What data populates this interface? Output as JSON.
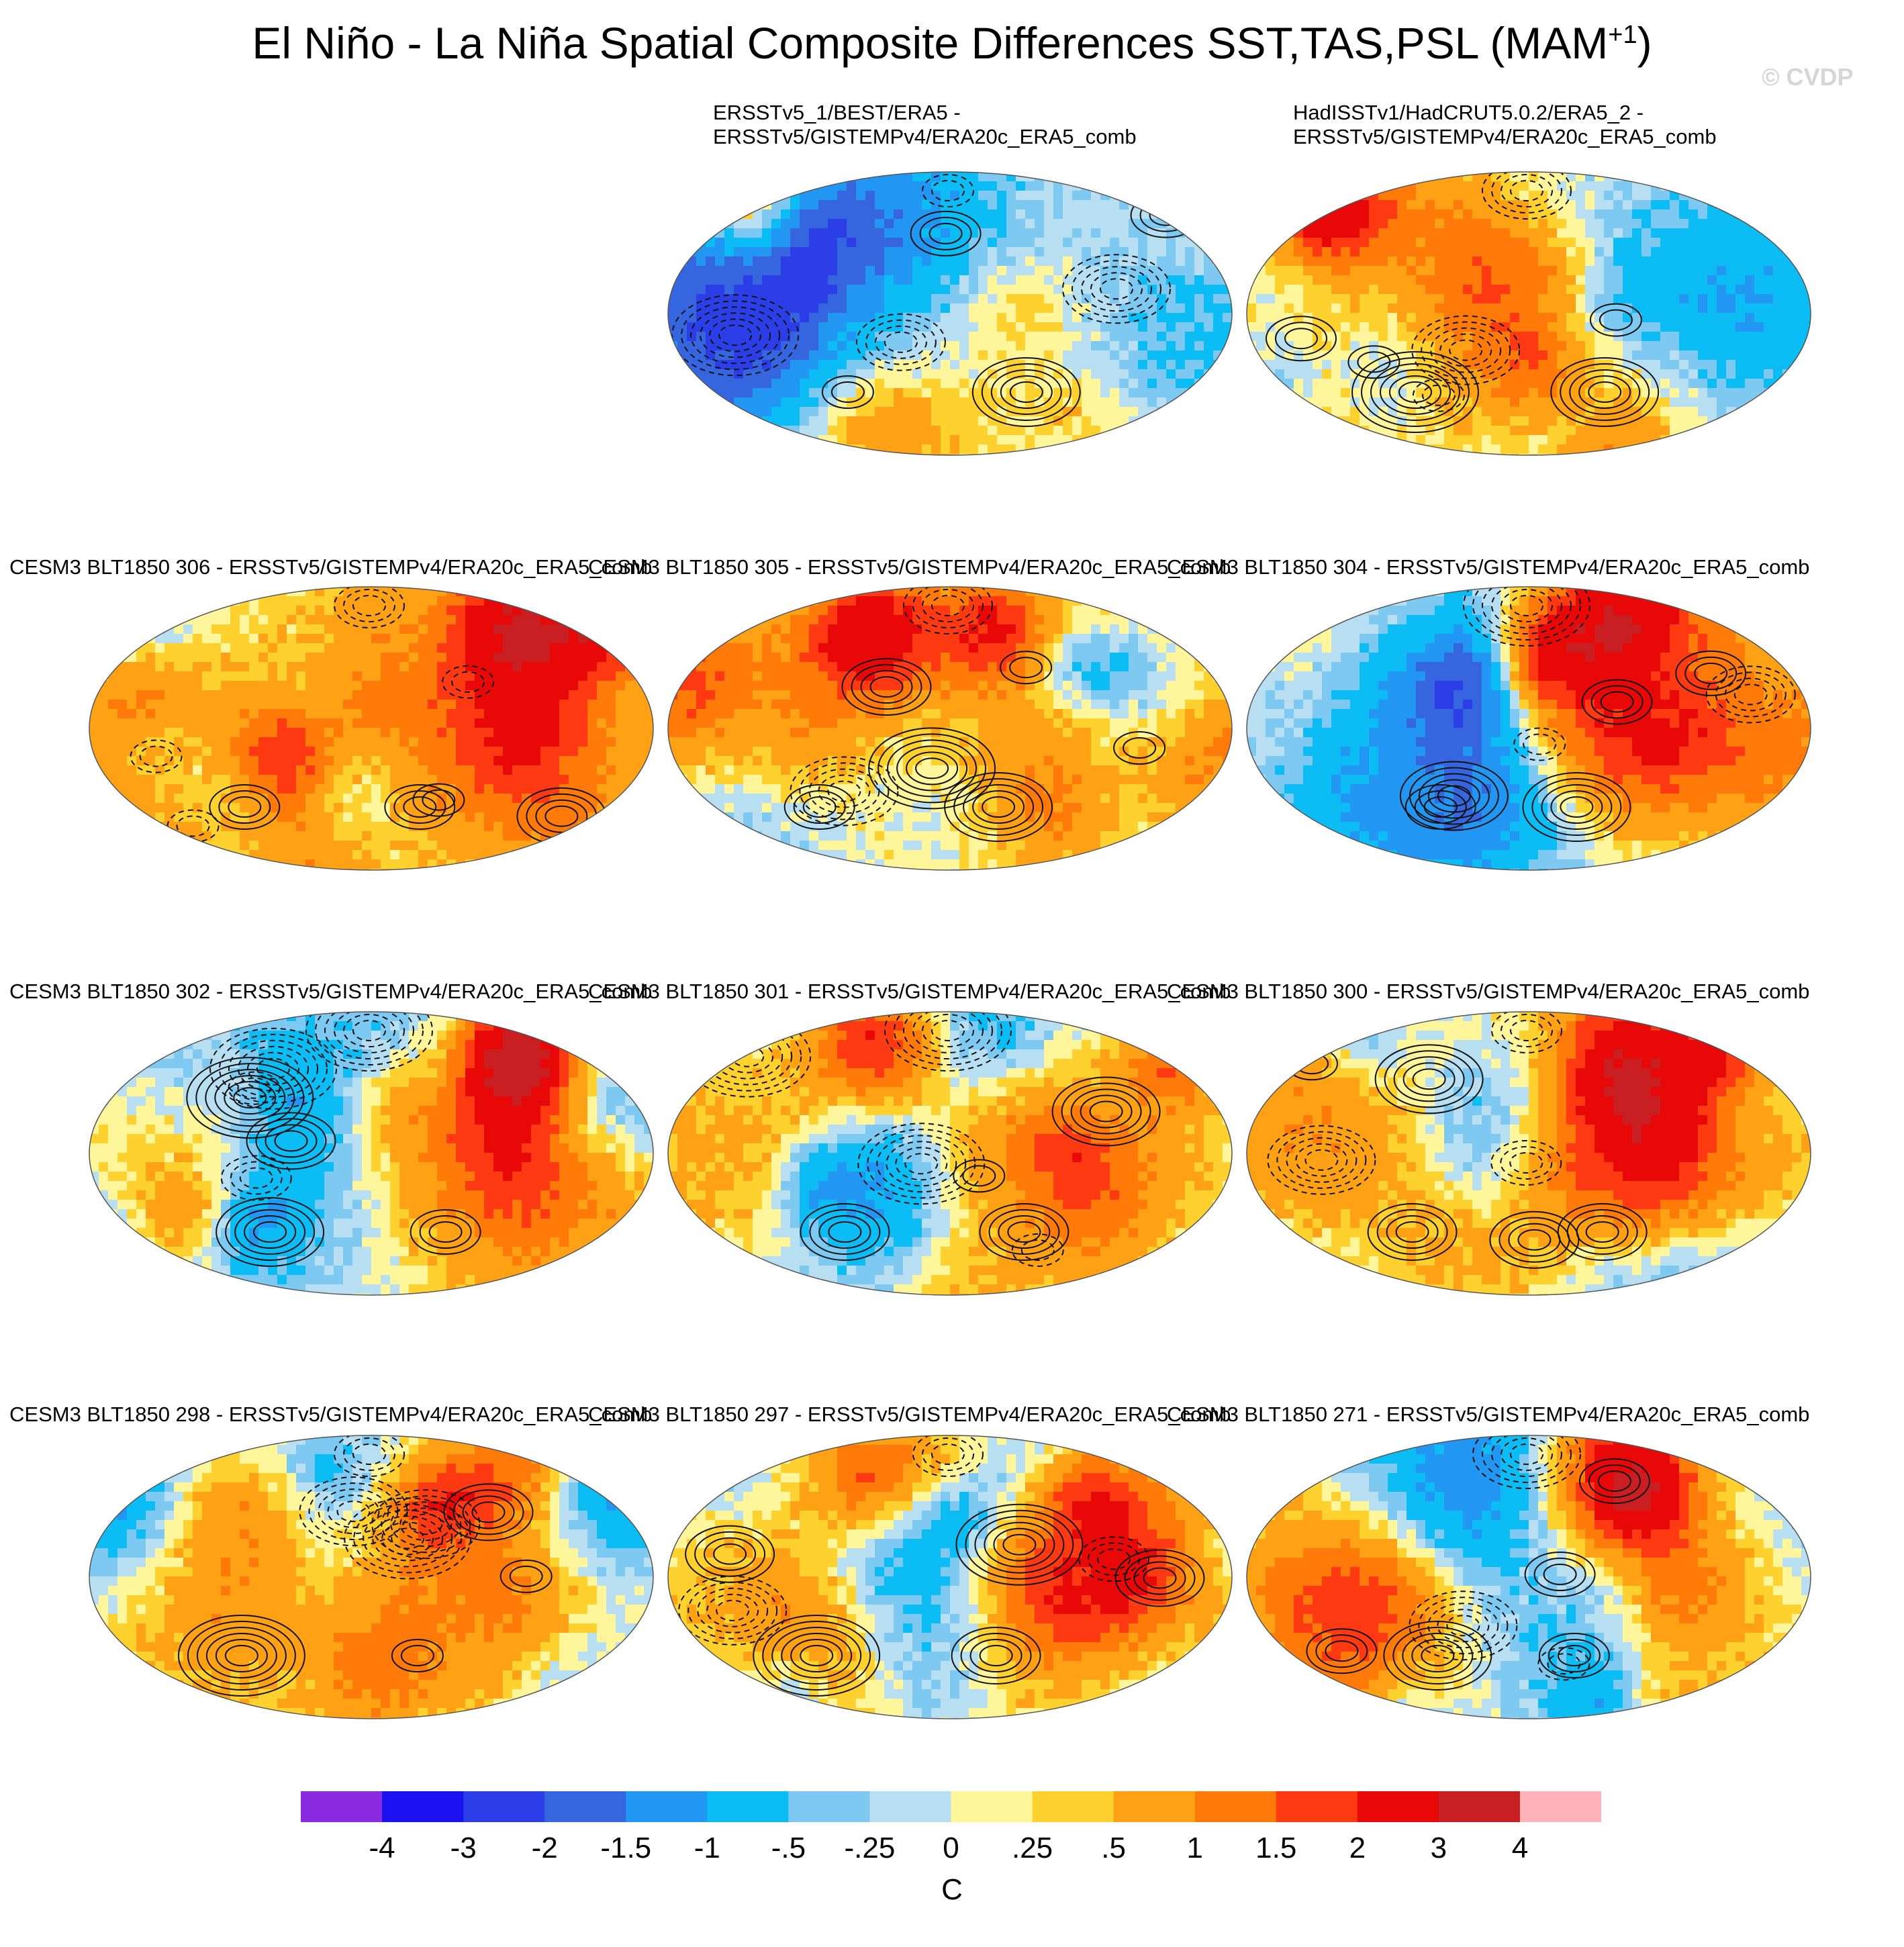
{
  "figure": {
    "title": "El Niño - La Niña Spatial Composite Differences SST,TAS,PSL (MAM",
    "title_superscript": "+1",
    "title_close": ")",
    "watermark": "© CVDP"
  },
  "chart_data": {
    "type": "heatmap",
    "description_variables": [
      "SST",
      "TAS",
      "PSL"
    ],
    "season": "MAM+1",
    "colorbar": {
      "units": "C",
      "tick_labels": [
        "-4",
        "-3",
        "-2",
        "-1.5",
        "-1",
        "-.5",
        "-.25",
        "0",
        ".25",
        ".5",
        "1",
        "1.5",
        "2",
        "3",
        "4"
      ],
      "levels": [
        -4,
        -3,
        -2,
        -1.5,
        -1,
        -0.5,
        -0.25,
        0,
        0.25,
        0.5,
        1,
        1.5,
        2,
        3,
        4
      ],
      "colors": [
        "#8a2be2",
        "#1a10f0",
        "#2b3ee8",
        "#3566e0",
        "#2196f3",
        "#0bbcf5",
        "#7dc9f2",
        "#b8def2",
        "#fff59a",
        "#ffd12f",
        "#ffa115",
        "#ff7a08",
        "#ff3a12",
        "#e80808",
        "#c91f22",
        "#ffb3b8"
      ]
    },
    "panels": [
      {
        "title": "ERSSTv5_1/BEST/ERA5 -\nERSSTv5/GISTEMPv4/ERA20c_ERA5_comb",
        "pattern": "obs",
        "seed": 11
      },
      {
        "title": "HadISSTv1/HadCRUT5.0.2/ERA5_2 -\nERSSTv5/GISTEMPv4/ERA20c_ERA5_comb",
        "pattern": "obs",
        "seed": 23
      },
      {
        "title": "CESM3 BLT1850 306 - ERSSTv5/GISTEMPv4/ERA20c_ERA5_comb",
        "pattern": "model",
        "seed": 37
      },
      {
        "title": "CESM3 BLT1850 305 - ERSSTv5/GISTEMPv4/ERA20c_ERA5_comb",
        "pattern": "model",
        "seed": 41
      },
      {
        "title": "CESM3 BLT1850 304 - ERSSTv5/GISTEMPv4/ERA20c_ERA5_comb",
        "pattern": "model",
        "seed": 53
      },
      {
        "title": "CESM3 BLT1850 302 - ERSSTv5/GISTEMPv4/ERA20c_ERA5_comb",
        "pattern": "model",
        "seed": 67
      },
      {
        "title": "CESM3 BLT1850 301 - ERSSTv5/GISTEMPv4/ERA20c_ERA5_comb",
        "pattern": "model",
        "seed": 71
      },
      {
        "title": "CESM3 BLT1850 300 - ERSSTv5/GISTEMPv4/ERA20c_ERA5_comb",
        "pattern": "model",
        "seed": 83
      },
      {
        "title": "CESM3 BLT1850 298 - ERSSTv5/GISTEMPv4/ERA20c_ERA5_comb",
        "pattern": "model",
        "seed": 97
      },
      {
        "title": "CESM3 BLT1850 297 - ERSSTv5/GISTEMPv4/ERA20c_ERA5_comb",
        "pattern": "model",
        "seed": 101
      },
      {
        "title": "CESM3 BLT1850 271 - ERSSTv5/GISTEMPv4/ERA20c_ERA5_comb",
        "pattern": "model",
        "seed": 113
      }
    ]
  }
}
